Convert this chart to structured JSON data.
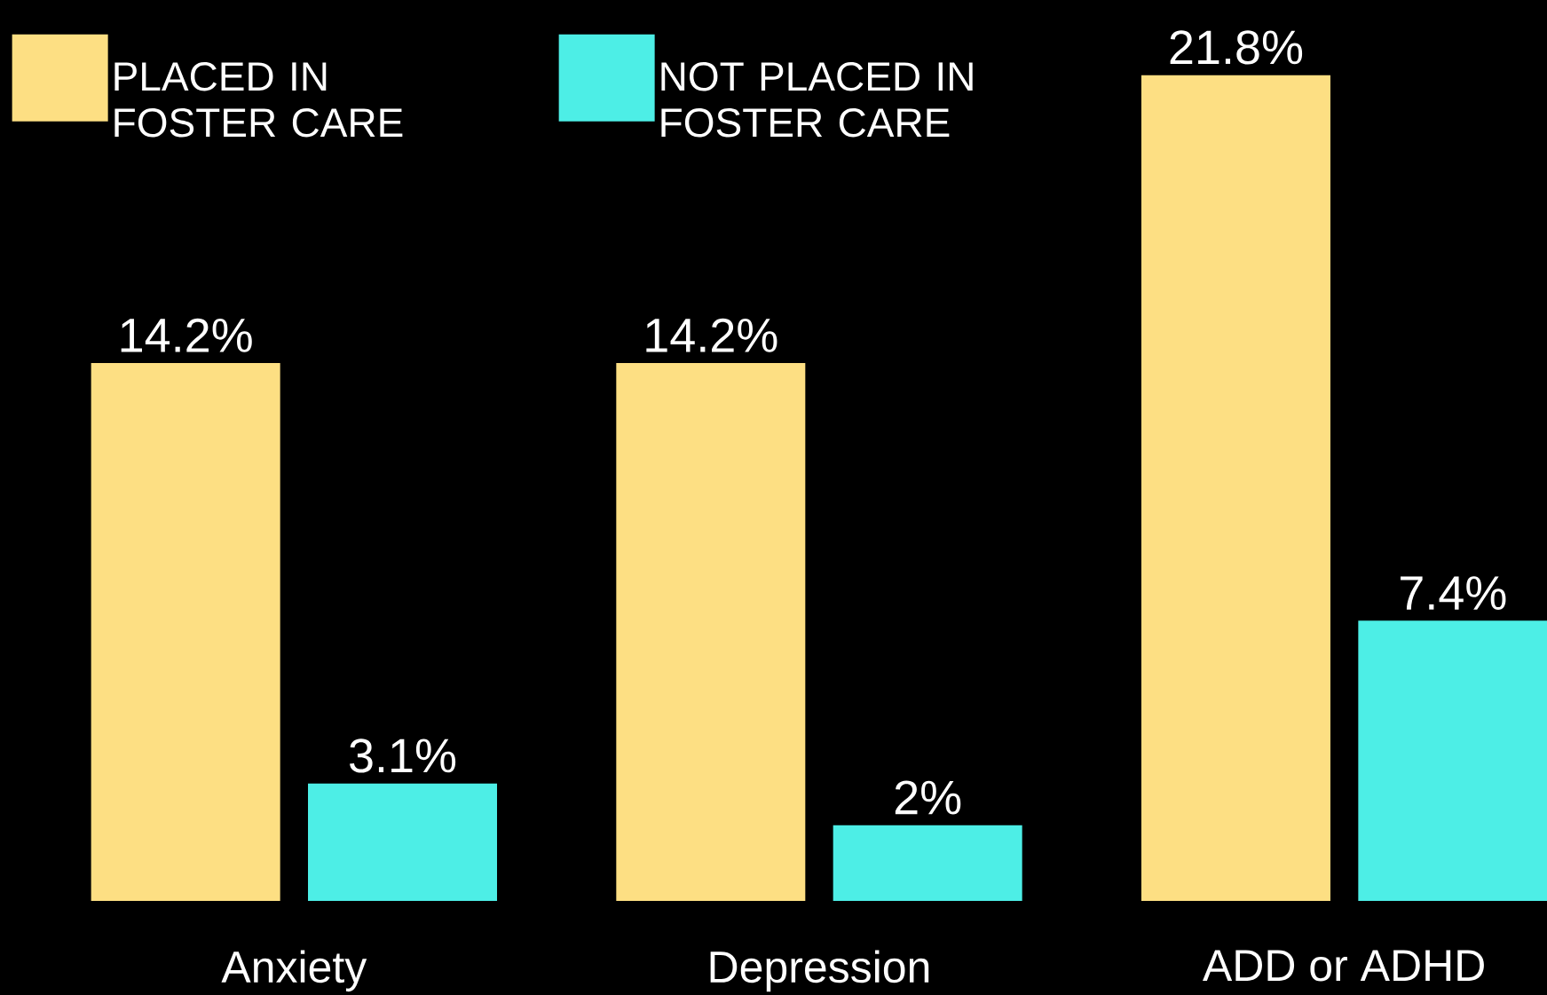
{
  "chart_data": {
    "type": "bar",
    "categories": [
      "Anxiety",
      "Depression",
      "ADD or ADHD"
    ],
    "series": [
      {
        "name": "PLACED IN FOSTER CARE",
        "color": "#fddf83",
        "values": [
          14.2,
          14.2,
          21.8
        ],
        "value_labels": [
          "14.2%",
          "14.2%",
          "21.8%"
        ]
      },
      {
        "name": "NOT PLACED IN FOSTER CARE",
        "color": "#4deee6",
        "values": [
          3.1,
          2,
          7.4
        ],
        "value_labels": [
          "3.1%",
          "2%",
          "7.4%"
        ]
      }
    ],
    "legend": "top left",
    "tick_labels": "x"
  }
}
